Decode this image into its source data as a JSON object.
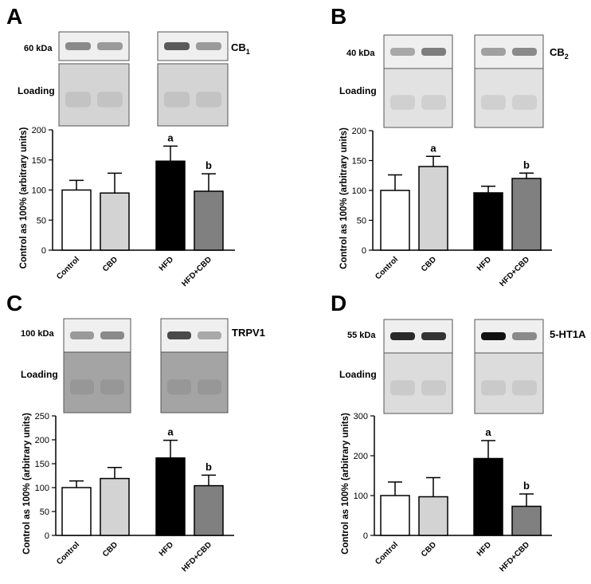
{
  "chart_data": [
    {
      "panel_label": "A",
      "type": "bar",
      "title": "",
      "blot_target": "CB",
      "blot_target_sub": "1",
      "kda_label": "60 kDa",
      "loading_label": "Loading",
      "ylabel": "Control as 100% (arbitrary units)",
      "xlabel": "",
      "ylim": [
        0,
        200
      ],
      "yticks": [
        0,
        50,
        100,
        150,
        200
      ],
      "categories": [
        "Control",
        "CBD",
        "HFD",
        "HFD+CBD"
      ],
      "values": [
        100,
        95,
        148,
        98
      ],
      "errors": [
        16,
        33,
        25,
        29
      ],
      "letters": [
        "",
        "",
        "a",
        "b"
      ],
      "bar_colors": [
        "#ffffff",
        "#d3d3d3",
        "#000000",
        "#808080"
      ]
    },
    {
      "panel_label": "B",
      "type": "bar",
      "title": "",
      "blot_target": "CB",
      "blot_target_sub": "2",
      "kda_label": "40 kDa",
      "loading_label": "Loading",
      "ylabel": "Control as 100% (arbitrary units)",
      "xlabel": "",
      "ylim": [
        0,
        200
      ],
      "yticks": [
        0,
        50,
        100,
        150,
        200
      ],
      "categories": [
        "Control",
        "CBD",
        "HFD",
        "HFD+CBD"
      ],
      "values": [
        100,
        140,
        96,
        120
      ],
      "errors": [
        26,
        17,
        11,
        9
      ],
      "letters": [
        "",
        "a",
        "",
        "b"
      ],
      "bar_colors": [
        "#ffffff",
        "#d3d3d3",
        "#000000",
        "#808080"
      ]
    },
    {
      "panel_label": "C",
      "type": "bar",
      "title": "",
      "blot_target": "TRPV1",
      "blot_target_sub": "",
      "kda_label": "100 kDa",
      "loading_label": "Loading",
      "ylabel": "Control as 100% (arbitrary units)",
      "xlabel": "",
      "ylim": [
        0,
        250
      ],
      "yticks": [
        0,
        50,
        100,
        150,
        200,
        250
      ],
      "categories": [
        "Control",
        "CBD",
        "HFD",
        "HFD+CBD"
      ],
      "values": [
        100,
        119,
        162,
        104
      ],
      "errors": [
        14,
        23,
        37,
        22
      ],
      "letters": [
        "",
        "",
        "a",
        "b"
      ],
      "bar_colors": [
        "#ffffff",
        "#d3d3d3",
        "#000000",
        "#808080"
      ]
    },
    {
      "panel_label": "D",
      "type": "bar",
      "title": "",
      "blot_target": "5-HT1A",
      "blot_target_sub": "",
      "kda_label": "55 kDa",
      "loading_label": "Loading",
      "ylabel": "Control as 100% (arbitrary units)",
      "xlabel": "",
      "ylim": [
        0,
        300
      ],
      "yticks": [
        0,
        100,
        200,
        300
      ],
      "categories": [
        "Control",
        "CBD",
        "HFD",
        "HFD+CBD"
      ],
      "values": [
        100,
        97,
        193,
        73
      ],
      "errors": [
        34,
        48,
        45,
        31
      ],
      "letters": [
        "",
        "",
        "a",
        "b"
      ],
      "bar_colors": [
        "#ffffff",
        "#d3d3d3",
        "#000000",
        "#808080"
      ]
    }
  ]
}
